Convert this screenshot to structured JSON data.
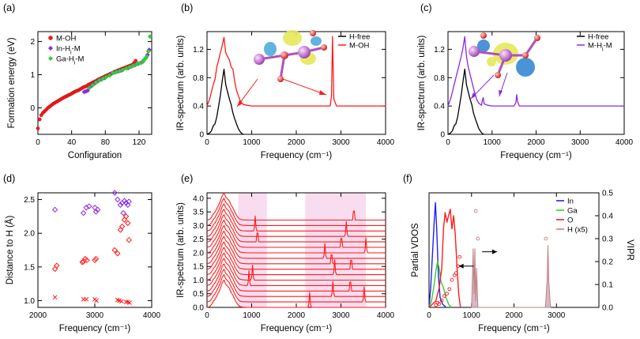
{
  "colors": {
    "red": "#ff1a1a",
    "purple": "#8a2be2",
    "green": "#33cc33",
    "black": "#000000",
    "pink": "#f8dcef",
    "brown": "#c08080",
    "blue": "#1f1fff"
  },
  "chart_data": [
    {
      "panel": "(a)",
      "type": "scatter",
      "xlabel": "Configuration",
      "ylabel": "Formation energy (eV)",
      "xlim": [
        0,
        135
      ],
      "ylim": [
        -0.8,
        2.3
      ],
      "xticks": [
        "0",
        "40",
        "80",
        "120"
      ],
      "yticks": [
        "0",
        "1",
        "2"
      ],
      "legend": [
        "M-OH",
        "In-H_i-M",
        "Ga-H_i-M"
      ],
      "series": [
        {
          "name": "M-OH",
          "x": [
            0,
            2,
            4,
            6,
            8,
            10,
            12,
            14,
            16,
            18,
            20,
            22,
            24,
            26,
            28,
            30,
            32,
            34,
            36,
            38,
            40,
            42,
            44,
            46,
            48,
            50,
            52,
            54,
            56,
            58,
            60,
            62,
            64,
            66,
            68,
            70,
            72,
            74,
            76,
            78,
            80,
            82,
            84,
            86,
            88,
            90,
            92,
            94,
            96,
            98,
            100,
            102,
            104,
            106,
            108,
            110,
            112,
            114,
            116
          ],
          "y": [
            -0.62,
            -0.35,
            -0.22,
            -0.15,
            -0.1,
            -0.05,
            0.0,
            0.04,
            0.08,
            0.12,
            0.15,
            0.18,
            0.21,
            0.24,
            0.27,
            0.3,
            0.33,
            0.35,
            0.38,
            0.4,
            0.43,
            0.46,
            0.49,
            0.51,
            0.53,
            0.56,
            0.59,
            0.62,
            0.64,
            0.66,
            0.7,
            0.72,
            0.75,
            0.78,
            0.8,
            0.83,
            0.86,
            0.88,
            0.91,
            0.93,
            0.96,
            0.98,
            1.0,
            1.03,
            1.05,
            1.08,
            1.1,
            1.12,
            1.14,
            1.16,
            1.18,
            1.2,
            1.22,
            1.24,
            1.26,
            1.28,
            1.3,
            1.35,
            1.42
          ]
        },
        {
          "name": "In-H_i-M",
          "x": [
            55,
            57,
            59,
            63,
            67,
            71,
            75,
            79,
            87,
            91,
            95,
            99,
            107,
            111,
            115,
            119,
            123,
            126,
            128,
            130,
            132
          ],
          "y": [
            0.48,
            0.5,
            0.52,
            0.65,
            0.73,
            0.8,
            0.85,
            0.9,
            1.02,
            1.07,
            1.1,
            1.13,
            1.2,
            1.25,
            1.29,
            1.33,
            1.37,
            1.45,
            1.5,
            1.6,
            1.75
          ]
        },
        {
          "name": "Ga-H_i-M",
          "x": [
            61,
            65,
            69,
            73,
            77,
            81,
            85,
            89,
            93,
            97,
            101,
            105,
            109,
            113,
            117,
            121,
            125,
            127,
            129,
            131,
            133
          ],
          "y": [
            0.6,
            0.68,
            0.76,
            0.83,
            0.88,
            0.93,
            0.97,
            1.05,
            1.08,
            1.11,
            1.15,
            1.19,
            1.23,
            1.27,
            1.31,
            1.35,
            1.4,
            1.47,
            1.55,
            1.7,
            2.15
          ]
        }
      ]
    },
    {
      "panel": "(b)",
      "type": "line",
      "xlabel": "Frequency (cm⁻¹)",
      "ylabel": "IR-spectrum (arb. units)",
      "xlim": [
        0,
        4000
      ],
      "ylim": [
        0,
        1.45
      ],
      "xticks": [
        "0",
        "1000",
        "2000",
        "3000",
        "4000"
      ],
      "yticks": [
        "0",
        "0.4",
        "0.8",
        "1.2"
      ],
      "legend": [
        "H-free",
        "M-OH"
      ],
      "series": [
        {
          "name": "H-free",
          "x": [
            0,
            60,
            100,
            140,
            180,
            220,
            260,
            300,
            340,
            380,
            420,
            460,
            500,
            540,
            580,
            620,
            660,
            700,
            740,
            780,
            820
          ],
          "y": [
            0,
            0.02,
            0.05,
            0.12,
            0.15,
            0.25,
            0.4,
            0.55,
            0.75,
            0.92,
            0.7,
            0.6,
            0.5,
            0.42,
            0.3,
            0.22,
            0.15,
            0.08,
            0.04,
            0.01,
            0
          ]
        },
        {
          "name": "M-OH",
          "x": [
            0,
            60,
            100,
            140,
            180,
            220,
            260,
            300,
            340,
            380,
            420,
            460,
            500,
            540,
            580,
            620,
            660,
            700,
            740,
            780,
            820,
            900,
            1000,
            1500,
            2000,
            2500,
            2760,
            2790,
            2810,
            2840,
            2900,
            3500,
            4000
          ],
          "y": [
            0.4,
            0.5,
            0.6,
            0.7,
            0.78,
            0.95,
            1.05,
            1.15,
            1.25,
            1.37,
            1.15,
            1.1,
            1.05,
            0.95,
            0.92,
            0.75,
            0.62,
            0.55,
            0.48,
            0.44,
            0.42,
            0.41,
            0.4,
            0.4,
            0.4,
            0.4,
            0.4,
            0.55,
            1.38,
            0.5,
            0.4,
            0.4,
            0.4
          ]
        }
      ]
    },
    {
      "panel": "(c)",
      "type": "line",
      "xlabel": "Frequency (cm⁻¹)",
      "ylabel": "IR-spectrum (arb. units)",
      "xlim": [
        0,
        4000
      ],
      "ylim": [
        0,
        1.45
      ],
      "xticks": [
        "0",
        "1000",
        "2000",
        "3000",
        "4000"
      ],
      "yticks": [
        "0",
        "0.4",
        "0.8",
        "1.2"
      ],
      "legend": [
        "H-free",
        "M-H_i-M"
      ],
      "series": [
        {
          "name": "H-free",
          "x": [
            0,
            60,
            100,
            140,
            180,
            220,
            260,
            300,
            340,
            380,
            420,
            460,
            500,
            540,
            580,
            620,
            660,
            700,
            740,
            780,
            820
          ],
          "y": [
            0,
            0.02,
            0.05,
            0.12,
            0.15,
            0.25,
            0.4,
            0.55,
            0.75,
            0.92,
            0.7,
            0.6,
            0.5,
            0.42,
            0.3,
            0.22,
            0.15,
            0.08,
            0.04,
            0.01,
            0
          ]
        },
        {
          "name": "M-H_i-M",
          "x": [
            0,
            60,
            100,
            140,
            180,
            220,
            260,
            300,
            340,
            380,
            420,
            460,
            500,
            540,
            580,
            620,
            660,
            700,
            740,
            760,
            780,
            800,
            820,
            900,
            1000,
            1500,
            1540,
            1560,
            1580,
            1620,
            2000,
            3000,
            4000
          ],
          "y": [
            0.4,
            0.5,
            0.6,
            0.7,
            0.8,
            0.9,
            1.0,
            1.1,
            1.22,
            1.38,
            1.1,
            0.95,
            0.85,
            0.75,
            0.65,
            0.55,
            0.48,
            0.44,
            0.42,
            0.41,
            0.48,
            0.52,
            0.43,
            0.41,
            0.4,
            0.4,
            0.45,
            0.56,
            0.46,
            0.4,
            0.4,
            0.4,
            0.4
          ]
        }
      ]
    },
    {
      "panel": "(d)",
      "type": "scatter",
      "xlabel": "Frequency (cm⁻¹)",
      "ylabel": "Distance to H (Å)",
      "xlim": [
        2000,
        4000
      ],
      "ylim": [
        0.9,
        2.6
      ],
      "xticks": [
        "2000",
        "3000",
        "4000"
      ],
      "yticks": [
        "1.0",
        "1.5",
        "2.0",
        "2.5"
      ],
      "series": [
        {
          "name": "purple-diamond",
          "x": [
            2300,
            2800,
            2850,
            2900,
            3000,
            3020,
            3050,
            3350,
            3400,
            3450,
            3480,
            3500,
            3520,
            3550,
            3580,
            3600
          ],
          "y": [
            2.35,
            2.3,
            2.38,
            2.4,
            2.38,
            2.32,
            2.35,
            2.6,
            2.5,
            2.42,
            2.45,
            2.3,
            2.48,
            2.45,
            2.42,
            2.47
          ]
        },
        {
          "name": "red-diamond",
          "x": [
            2300,
            2330,
            2780,
            2800,
            2830,
            2860,
            3000,
            3020,
            3350,
            3400,
            3450,
            3480,
            3520,
            3550,
            3580,
            3600
          ],
          "y": [
            1.47,
            1.52,
            1.57,
            1.58,
            1.62,
            1.6,
            1.6,
            1.62,
            1.75,
            1.7,
            2.05,
            2.1,
            2.2,
            2.25,
            2.15,
            1.9
          ]
        },
        {
          "name": "red-x",
          "x": [
            2300,
            2800,
            2850,
            3000,
            3030,
            3400,
            3430,
            3470,
            3550,
            3580,
            3610
          ],
          "y": [
            1.05,
            1.02,
            1.02,
            1.02,
            1.0,
            1.01,
            1.0,
            0.99,
            0.98,
            0.98,
            0.97
          ]
        }
      ]
    },
    {
      "panel": "(e)",
      "type": "line",
      "xlabel": "Frequency (cm⁻¹)",
      "ylabel": "IR-spectrum (arb. units)",
      "xlim": [
        0,
        4000
      ],
      "ylim": [
        0,
        4.2
      ],
      "xticks": [
        "0",
        "1000",
        "2000",
        "3000",
        "4000"
      ],
      "yticks": [
        "0.0",
        "0.5",
        "1.0",
        "1.5",
        "2.0",
        "2.5",
        "3.0",
        "3.5",
        "4.0"
      ],
      "shaded": [
        [
          700,
          1340
        ],
        [
          2200,
          3560
        ]
      ],
      "offsets": [
        0.0,
        0.2,
        0.4,
        0.6,
        0.8,
        1.0,
        1.2,
        1.4,
        1.6,
        1.8,
        2.0,
        2.2,
        2.4,
        2.6,
        2.8,
        3.0,
        3.2
      ],
      "peaks": [
        2300,
        3520,
        2820,
        3210,
        940,
        1020,
        2860,
        3230,
        2790,
        2640,
        3560,
        3010,
        1130,
        3120,
        1080,
        810,
        3290
      ]
    },
    {
      "panel": "(f)",
      "type": "line",
      "xlabel": "Frequency (cm⁻¹)",
      "ylabel": "Partial VDOS",
      "y2label": "VIPR",
      "xlim": [
        0,
        4000
      ],
      "y2lim": [
        0,
        0.5
      ],
      "xticks": [
        "0",
        "1000",
        "2000",
        "3000"
      ],
      "y2ticks": [
        "0.0",
        "0.1",
        "0.2",
        "0.3",
        "0.4",
        "0.5"
      ],
      "legend": [
        "In",
        "Ga",
        "O",
        "H (x5)"
      ],
      "series": [
        {
          "name": "In",
          "x": [
            0,
            40,
            80,
            120,
            150,
            180,
            220,
            260,
            320,
            400
          ],
          "y": [
            0,
            0.3,
            0.8,
            1.3,
            1.6,
            1.2,
            0.5,
            0.15,
            0.05,
            0
          ]
        },
        {
          "name": "Ga",
          "x": [
            0,
            60,
            120,
            160,
            200,
            240,
            280,
            340,
            400,
            460,
            520
          ],
          "y": [
            0,
            0.1,
            0.35,
            0.55,
            0.7,
            0.6,
            0.4,
            0.3,
            0.15,
            0.05,
            0
          ]
        },
        {
          "name": "O",
          "x": [
            0,
            80,
            160,
            240,
            300,
            340,
            380,
            420,
            460,
            500,
            540,
            580,
            620,
            660,
            700,
            740
          ],
          "y": [
            0,
            0.05,
            0.1,
            0.3,
            0.6,
            1.2,
            1.45,
            1.3,
            1.4,
            1.5,
            1.2,
            1.4,
            1.1,
            0.6,
            0.2,
            0
          ]
        },
        {
          "name": "H (x5)",
          "x": [
            1000,
            1040,
            1060,
            1080,
            1100,
            1120,
            1150,
            2740,
            2780,
            2800,
            2820,
            2860
          ],
          "y": [
            0,
            0.9,
            0.2,
            0.9,
            0.1,
            0.6,
            0,
            0,
            0.4,
            0.95,
            0.4,
            0
          ]
        },
        {
          "name": "VIPR",
          "x": [
            160,
            200,
            240,
            300,
            360,
            420,
            480,
            540,
            600,
            640,
            680,
            720,
            1100,
            1150,
            2750
          ],
          "y": [
            0.01,
            0.02,
            0.015,
            0.03,
            0.05,
            0.06,
            0.08,
            0.12,
            0.14,
            0.15,
            0.18,
            0.22,
            0.42,
            0.3,
            0.3
          ]
        }
      ]
    }
  ]
}
